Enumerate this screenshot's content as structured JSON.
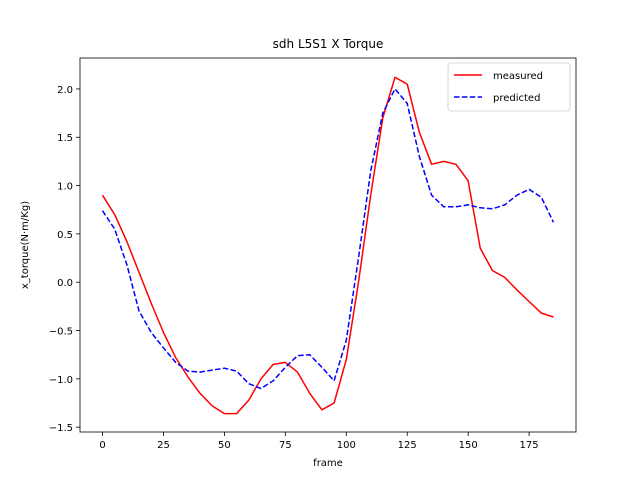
{
  "chart_data": {
    "type": "line",
    "title": "sdh L5S1 X Torque",
    "xlabel": "frame",
    "ylabel": "x_torque(N·m/Kg)",
    "xlim": [
      -9.25,
      194.25
    ],
    "ylim": [
      -1.55,
      2.32
    ],
    "xticks": [
      0,
      25,
      50,
      75,
      100,
      125,
      150,
      175
    ],
    "yticks": [
      -1.5,
      -1.0,
      -0.5,
      0.0,
      0.5,
      1.0,
      1.5,
      2.0
    ],
    "ytick_labels": [
      "−1.5",
      "−1.0",
      "−0.5",
      "0.0",
      "0.5",
      "1.0",
      "1.5",
      "2.0"
    ],
    "grid": false,
    "legend_position": "top-right",
    "series": [
      {
        "name": "measured",
        "color": "#ff0000",
        "dash": "solid",
        "points": [
          [
            0,
            0.9
          ],
          [
            5,
            0.7
          ],
          [
            10,
            0.42
          ],
          [
            15,
            0.1
          ],
          [
            20,
            -0.22
          ],
          [
            25,
            -0.52
          ],
          [
            30,
            -0.78
          ],
          [
            35,
            -0.98
          ],
          [
            40,
            -1.15
          ],
          [
            45,
            -1.28
          ],
          [
            50,
            -1.36
          ],
          [
            55,
            -1.36
          ],
          [
            60,
            -1.22
          ],
          [
            65,
            -1.0
          ],
          [
            70,
            -0.85
          ],
          [
            75,
            -0.83
          ],
          [
            80,
            -0.93
          ],
          [
            85,
            -1.15
          ],
          [
            90,
            -1.32
          ],
          [
            95,
            -1.25
          ],
          [
            100,
            -0.8
          ],
          [
            105,
            0.0
          ],
          [
            110,
            0.9
          ],
          [
            115,
            1.7
          ],
          [
            120,
            2.12
          ],
          [
            125,
            2.05
          ],
          [
            130,
            1.55
          ],
          [
            135,
            1.22
          ],
          [
            140,
            1.25
          ],
          [
            145,
            1.22
          ],
          [
            150,
            1.05
          ],
          [
            155,
            0.35
          ],
          [
            160,
            0.12
          ],
          [
            165,
            0.05
          ],
          [
            170,
            -0.08
          ],
          [
            175,
            -0.2
          ],
          [
            180,
            -0.32
          ],
          [
            185,
            -0.36
          ]
        ]
      },
      {
        "name": "predicted",
        "color": "#0000ff",
        "dash": "dashed",
        "points": [
          [
            0,
            0.74
          ],
          [
            5,
            0.55
          ],
          [
            10,
            0.18
          ],
          [
            15,
            -0.3
          ],
          [
            20,
            -0.52
          ],
          [
            25,
            -0.68
          ],
          [
            30,
            -0.83
          ],
          [
            35,
            -0.92
          ],
          [
            40,
            -0.93
          ],
          [
            45,
            -0.91
          ],
          [
            50,
            -0.89
          ],
          [
            55,
            -0.92
          ],
          [
            60,
            -1.05
          ],
          [
            65,
            -1.1
          ],
          [
            70,
            -1.02
          ],
          [
            75,
            -0.88
          ],
          [
            80,
            -0.76
          ],
          [
            85,
            -0.75
          ],
          [
            90,
            -0.88
          ],
          [
            95,
            -1.02
          ],
          [
            100,
            -0.6
          ],
          [
            105,
            0.25
          ],
          [
            110,
            1.15
          ],
          [
            115,
            1.75
          ],
          [
            120,
            2.0
          ],
          [
            125,
            1.85
          ],
          [
            130,
            1.3
          ],
          [
            135,
            0.9
          ],
          [
            140,
            0.78
          ],
          [
            145,
            0.78
          ],
          [
            150,
            0.8
          ],
          [
            155,
            0.77
          ],
          [
            160,
            0.76
          ],
          [
            165,
            0.8
          ],
          [
            170,
            0.9
          ],
          [
            175,
            0.96
          ],
          [
            180,
            0.88
          ],
          [
            185,
            0.62
          ]
        ]
      }
    ]
  }
}
